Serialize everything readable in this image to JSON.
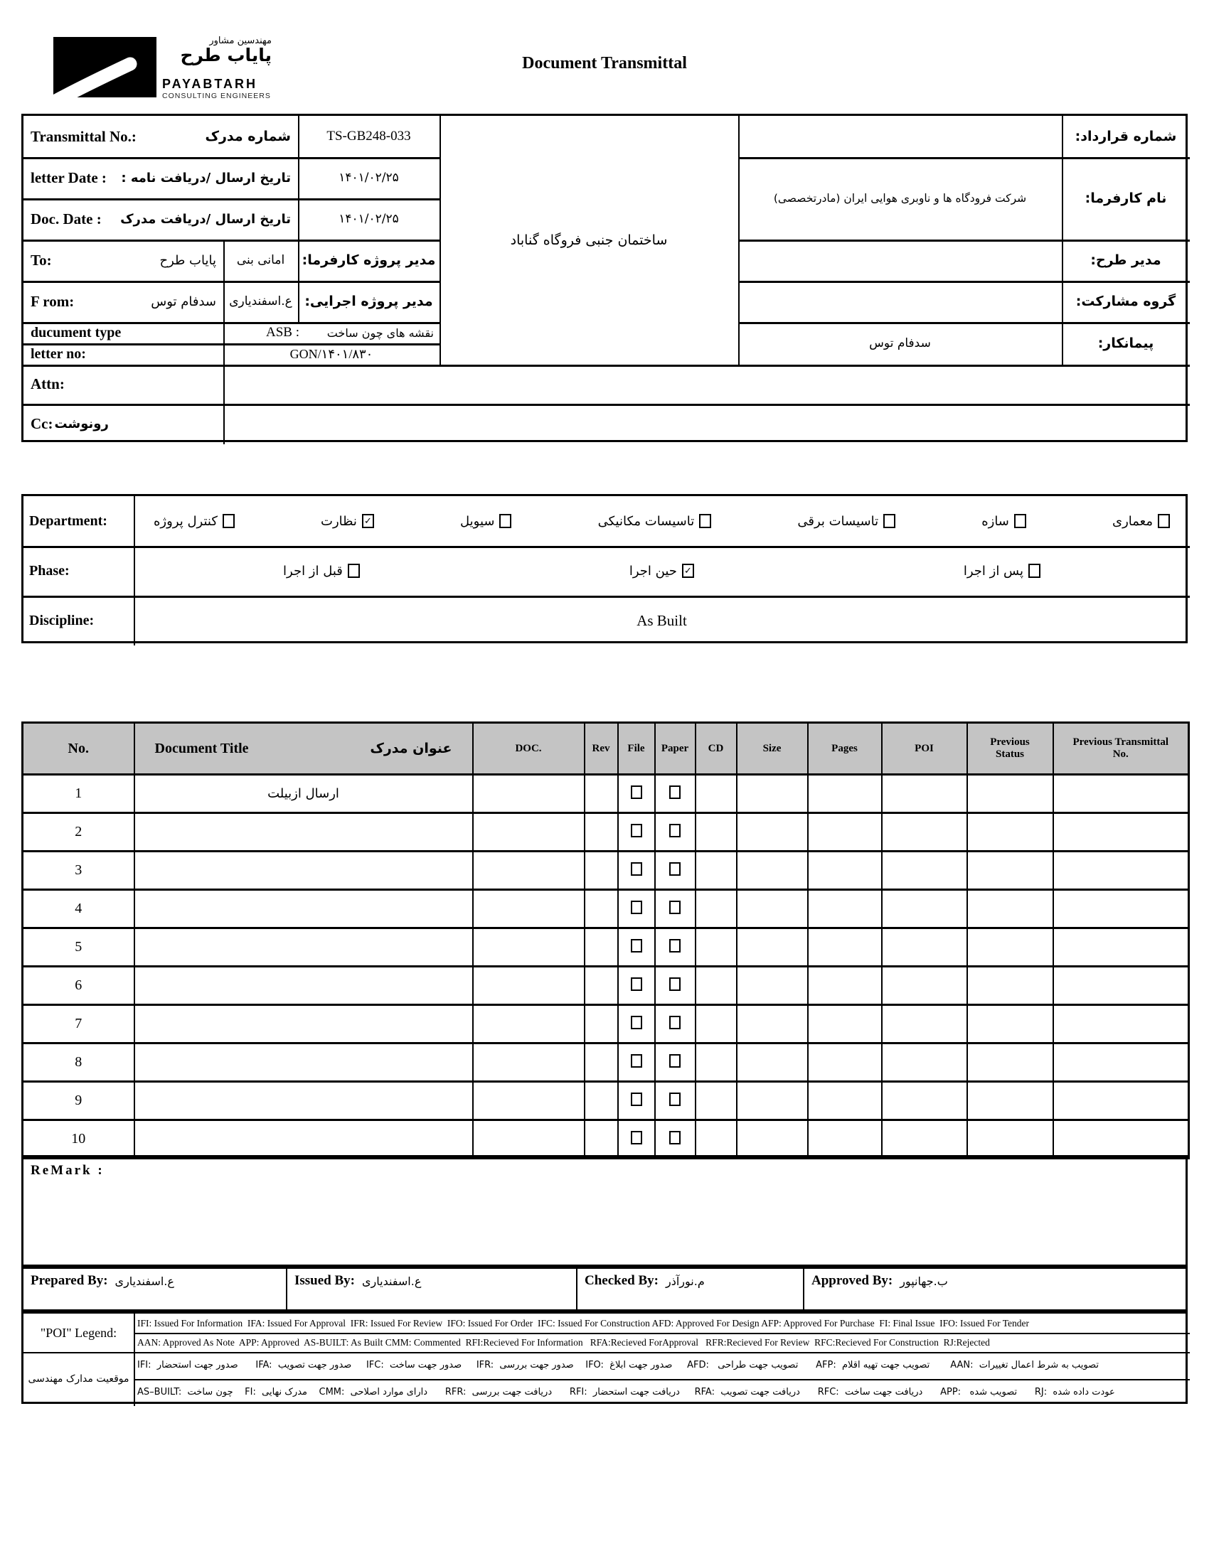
{
  "header": {
    "title": "Document Transmittal",
    "brand_fa_line1": "مهندسین مشاور",
    "brand_fa_line2": "پایاب طرح",
    "brand_en": "PAYABTARH",
    "brand_en_sub": "CONSULTING ENGINEERS"
  },
  "info": {
    "transmittal_label_en": "Transmittal No.:",
    "transmittal_label_fa": "شماره مدرک",
    "transmittal_value": "TS-GB248-033",
    "letter_date_label_en": "letter Date  :",
    "letter_date_label_fa": "تاریخ ارسال /دریافت نامه :",
    "letter_date_value": "۱۴۰۱/۰۲/۲۵",
    "doc_date_label_en": "Doc. Date :",
    "doc_date_label_fa": "تاریخ ارسال /دریافت مدرک",
    "doc_date_value": "۱۴۰۱/۰۲/۲۵",
    "to_label": "To:",
    "to_value": "پایاب طرح",
    "to_person": "امانی بنی",
    "to_role": "مدیر پروژه کارفرما:",
    "from_label": "F rom:",
    "from_value": "سدفام توس",
    "from_person": "ع.اسفندیاری",
    "from_role": "مدیر پروژه اجرایی:",
    "doctype_label": "ducument type",
    "doctype_value_en": "ASB   :",
    "doctype_value_fa": "نقشه های چون ساخت",
    "letterno_label": "letter no:",
    "letterno_value": "GON/۱۴۰۱/۸۳۰",
    "attn_label": "Attn:",
    "cc_label_en": "Cc:",
    "cc_label_fa": "رونوشت",
    "project_name": "ساختمان جنبی فروگاه گناباد",
    "contract_no_label": "شماره قرارداد:",
    "client_label": "نام کارفرما:",
    "client_value": "شرکت فرودگاه ها و ناوبری هوایی ایران (مادرتخصصی)",
    "design_manager_label": "مدیر طرح:",
    "partnership_label": "گروه مشارکت:",
    "contractor_label": "پیمانکار:",
    "contractor_value": "سدفام توس"
  },
  "classification": {
    "department_label": "Department:",
    "departments": [
      {
        "label": "معماری",
        "checked": false
      },
      {
        "label": "سازه",
        "checked": false
      },
      {
        "label": "تاسیسات برقی",
        "checked": false
      },
      {
        "label": "تاسیسات مکانیکی",
        "checked": false
      },
      {
        "label": "سیویل",
        "checked": false
      },
      {
        "label": "نظارت",
        "checked": true
      },
      {
        "label": "کنترل پروژه",
        "checked": false
      }
    ],
    "phase_label": "Phase:",
    "phases": [
      {
        "label": "پس از اجرا",
        "checked": false
      },
      {
        "label": "حین اجرا",
        "checked": true
      },
      {
        "label": "قبل از اجرا",
        "checked": false
      }
    ],
    "discipline_label": "Discipline:",
    "discipline_value": "As Built"
  },
  "doc_table": {
    "headers": {
      "no": "No.",
      "title_en": "Document Title",
      "title_fa": "عنوان مدرک",
      "doc": "DOC.",
      "rev": "Rev",
      "file": "File",
      "paper": "Paper",
      "cd": "CD",
      "size": "Size",
      "pages": "Pages",
      "poi": "POI",
      "prev_status": "Previous Status",
      "prev_transmittal": "Previous Transmittal No."
    },
    "rows": [
      {
        "no": "1",
        "title": "ارسال ازبیلت"
      },
      {
        "no": "2",
        "title": ""
      },
      {
        "no": "3",
        "title": ""
      },
      {
        "no": "4",
        "title": ""
      },
      {
        "no": "5",
        "title": ""
      },
      {
        "no": "6",
        "title": ""
      },
      {
        "no": "7",
        "title": ""
      },
      {
        "no": "8",
        "title": ""
      },
      {
        "no": "9",
        "title": ""
      },
      {
        "no": "10",
        "title": ""
      }
    ]
  },
  "remark_label": "ReMark :",
  "signatures": {
    "prepared_label": "Prepared By:",
    "prepared_value": "ع.اسفندیاری",
    "issued_label": "Issued By:",
    "issued_value": "ع.اسفندیاری",
    "checked_label": "Checked By:",
    "checked_value": "م.نورآذر",
    "approved_label": "Approved By:",
    "approved_value": "ب.جهانپور"
  },
  "legend": {
    "poi_label": "\"POI\" Legend:",
    "en_line1": "IFI: Issued For Information  IFA: Issued For Approval  IFR: Issued For Review  IFO: Issued For Order  IFC: Issued For Construction AFD: Approved For Design AFP: Approved For Purchase  FI: Final Issue  IFO: Issued For Tender",
    "en_line2": "AAN: Approved As Note  APP: Approved  AS-BUILT: As Built CMM: Commented  RFI:Recieved For Information   RFA:Recieved ForApproval   RFR:Recieved For Review  RFC:Recieved For Construction  RJ:Rejected",
    "fa_label": "موقعیت مدارک مهندسی",
    "fa_line1": "IFI:  صدور جهت استحضار      IFA:  صدور جهت تصویب     IFC:  صدور جهت ساخت     IFR:  صدور جهت بررسی    IFO:  صدور جهت ابلاغ     AFD:   تصویب جهت طراحی      AFP:  تصویب جهت تهیه اقلام       AAN:  تصویب به شرط اعمال تغییرات",
    "fa_line2": "AS–BUILT:  چون ساخت    FI:  مدرک نهایی    CMM:  دارای موارد اصلاحی      RFR:  دریافت جهت بررسی      RFI:  دریافت جهت استحضار     RFA:  دریافت جهت تصویب      RFC:  دریافت جهت ساخت      APP:   تصویب شده      RJ:  عودت داده شده"
  }
}
